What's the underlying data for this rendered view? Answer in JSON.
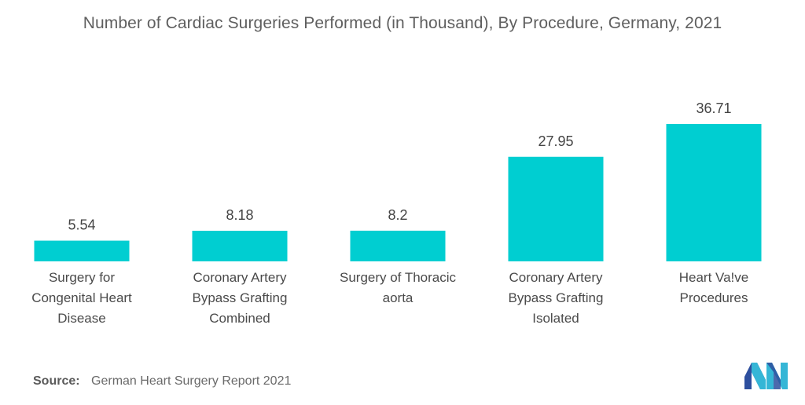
{
  "chart_data": {
    "type": "bar",
    "title": "Number of Cardiac Surgeries Performed (in Thousand), By Procedure, Germany, 2021",
    "categories": [
      "Surgery for\nCongenital Heart\nDisease",
      "Coronary Artery\nBypass Grafting\nCombined",
      "Surgery of Thoracic\naorta",
      "Coronary Artery\nBypass Grafting\nIsolated",
      "Heart Va!ve\nProcedures"
    ],
    "values": [
      5.54,
      8.18,
      8.2,
      27.95,
      36.71
    ],
    "value_labels": [
      "5.54",
      "8.18",
      "8.2",
      "27.95",
      "36.71"
    ],
    "ylim": [
      0,
      40
    ],
    "grid": false,
    "colors": {
      "bar": "#00CED1"
    }
  },
  "footer": {
    "source_label": "Source:",
    "source_text": "German Heart Surgery Report 2021"
  },
  "logo": {
    "icon": "mordor-intelligence-logo-icon"
  }
}
